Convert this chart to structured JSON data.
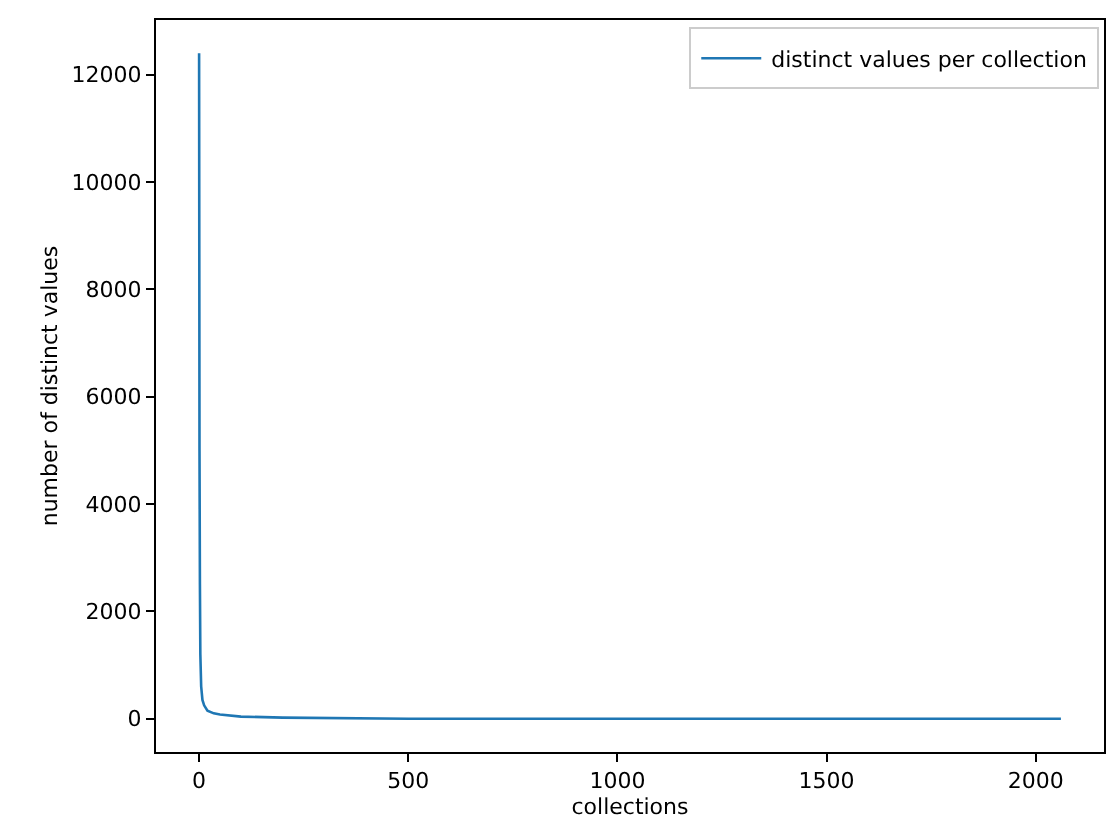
{
  "chart_data": {
    "type": "line",
    "xlabel": "collections",
    "ylabel": "number of distinct values",
    "x": [
      0,
      1,
      2,
      3,
      5,
      8,
      12,
      20,
      35,
      50,
      100,
      200,
      500,
      1000,
      1500,
      2060
    ],
    "series": [
      {
        "name": "distinct values per collection",
        "color": "#1f77b4",
        "values": [
          12400,
          5000,
          2500,
          1200,
          600,
          350,
          250,
          150,
          100,
          80,
          40,
          20,
          0,
          0,
          0,
          0
        ]
      }
    ],
    "xlim": [
      -103,
      2163
    ],
    "ylim": [
      -620,
      13020
    ],
    "xticks": [
      0,
      500,
      1000,
      1500,
      2000
    ],
    "yticks": [
      0,
      2000,
      4000,
      6000,
      8000,
      10000,
      12000
    ],
    "legend": "top right",
    "marker": "none",
    "line_style": "solid"
  }
}
